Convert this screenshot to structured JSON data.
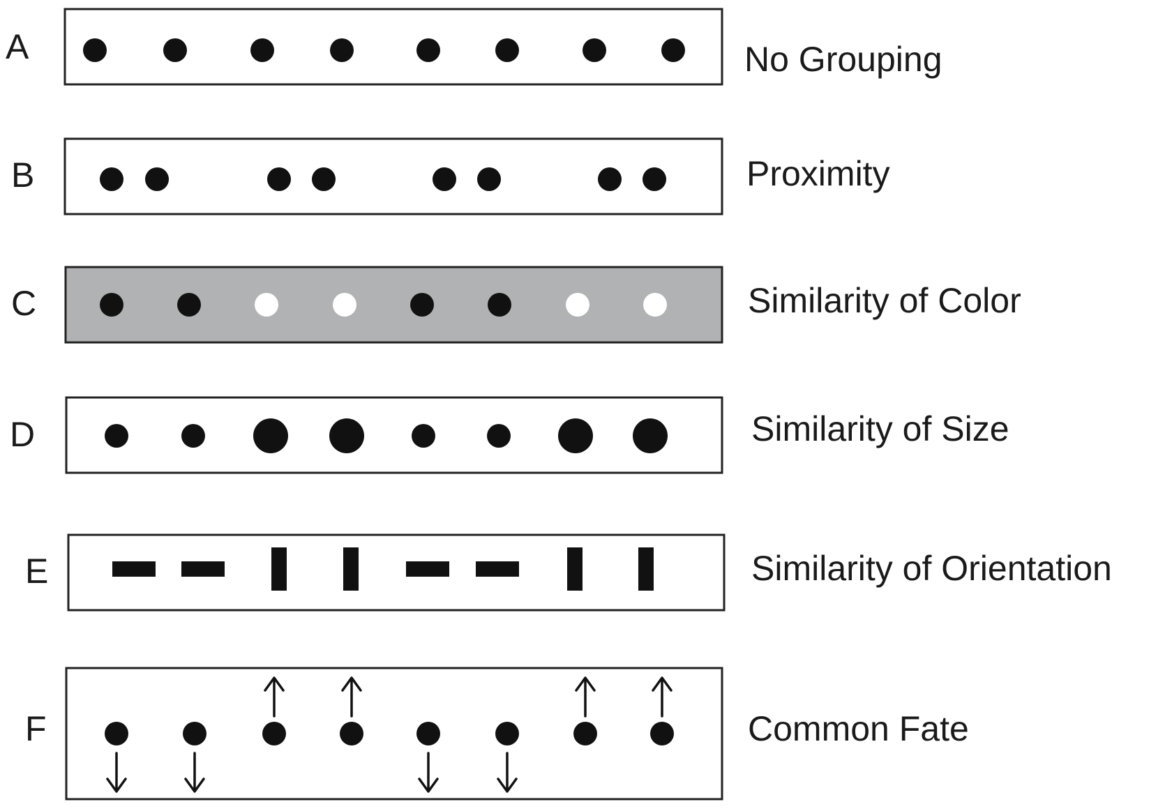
{
  "rows": [
    {
      "letter": "A",
      "label": "No Grouping",
      "kind": "dots"
    },
    {
      "letter": "B",
      "label": "Proximity",
      "kind": "dots"
    },
    {
      "letter": "C",
      "label": "Similarity of Color",
      "kind": "color",
      "colors": [
        "black",
        "black",
        "white",
        "white",
        "black",
        "black",
        "white",
        "white"
      ]
    },
    {
      "letter": "D",
      "label": "Similarity of Size",
      "kind": "size",
      "sizes": [
        "small",
        "small",
        "large",
        "large",
        "small",
        "small",
        "large",
        "large"
      ]
    },
    {
      "letter": "E",
      "label": "Similarity of Orientation",
      "kind": "orientation",
      "orientations": [
        "horizontal",
        "horizontal",
        "vertical",
        "vertical",
        "horizontal",
        "horizontal",
        "vertical",
        "vertical"
      ]
    },
    {
      "letter": "F",
      "label": "Common Fate",
      "kind": "motion",
      "directions": [
        "down",
        "down",
        "up",
        "up",
        "down",
        "down",
        "up",
        "up"
      ]
    }
  ],
  "colors": {
    "ink": "#111111",
    "panel_gray": "#b1b2b4",
    "white_dot": "#ffffff"
  }
}
